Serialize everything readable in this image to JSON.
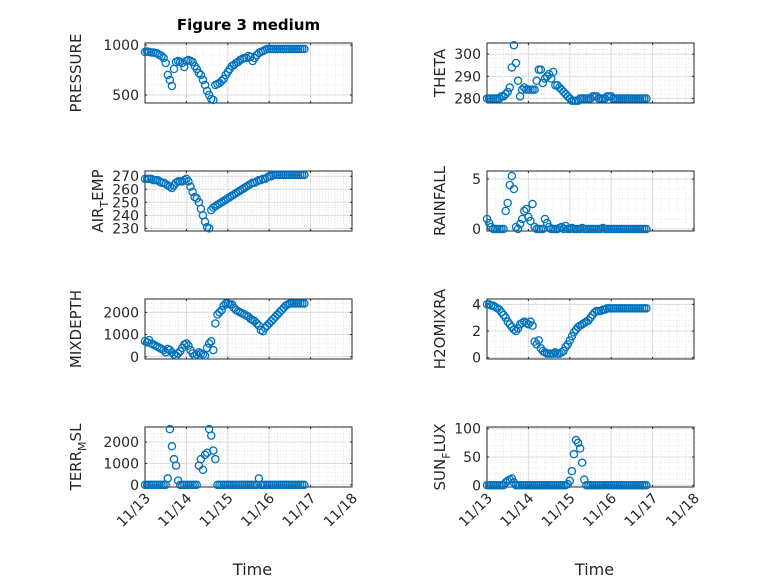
{
  "chart_data": [
    {
      "type": "scatter",
      "title": "Figure 3 medium",
      "ylabel": "PRESSURE",
      "ylabel_main": "PRESSURE",
      "ylabel_sub": "",
      "ylabel_tail": "",
      "xlabel": "",
      "xticks": [],
      "ylim": [
        420,
        1020
      ],
      "yticks": [
        "1000",
        "500"
      ],
      "ytick_values": [
        1000,
        500
      ],
      "x": [
        0,
        0.05,
        0.1,
        0.15,
        0.2,
        0.25,
        0.3,
        0.35,
        0.4,
        0.45,
        0.5,
        0.55,
        0.6,
        0.65,
        0.7,
        0.75,
        0.8,
        0.85,
        0.9,
        0.95,
        1.0,
        1.05,
        1.1,
        1.15,
        1.2,
        1.25,
        1.3,
        1.35,
        1.4,
        1.45,
        1.5,
        1.55,
        1.6,
        1.65,
        1.7,
        1.75,
        1.8,
        1.85,
        1.9,
        1.95,
        2.0,
        2.05,
        2.1,
        2.15,
        2.2,
        2.25,
        2.3,
        2.35,
        2.4,
        2.45,
        2.5,
        2.55,
        2.6,
        2.65,
        2.7,
        2.75,
        2.8,
        2.85,
        2.9,
        2.95,
        3.0,
        3.05,
        3.1,
        3.15,
        3.2,
        3.25,
        3.3,
        3.35,
        3.4,
        3.45,
        3.5,
        3.55,
        3.6,
        3.65,
        3.7,
        3.75,
        3.8,
        3.85
      ],
      "y": [
        930,
        935,
        930,
        925,
        925,
        920,
        915,
        900,
        890,
        870,
        820,
        700,
        650,
        590,
        760,
        830,
        840,
        830,
        820,
        780,
        840,
        850,
        840,
        830,
        790,
        760,
        720,
        700,
        650,
        600,
        540,
        500,
        460,
        450,
        600,
        610,
        620,
        640,
        660,
        700,
        730,
        760,
        790,
        800,
        820,
        830,
        850,
        860,
        870,
        870,
        890,
        880,
        840,
        870,
        900,
        920,
        930,
        940,
        950,
        960,
        960,
        960,
        960,
        960,
        960,
        960,
        960,
        960,
        960,
        960,
        960,
        960,
        960,
        960,
        960,
        960,
        960,
        960
      ],
      "markers": 78
    },
    {
      "type": "scatter",
      "ylabel": "THETA",
      "ylabel_main": "THETA",
      "ylabel_sub": "",
      "ylabel_tail": "",
      "xlabel": "",
      "xticks": [],
      "ylim": [
        278,
        305
      ],
      "yticks": [
        "300",
        "290",
        "280"
      ],
      "ytick_values": [
        300,
        290,
        280
      ],
      "x": [
        0,
        0.05,
        0.1,
        0.15,
        0.2,
        0.25,
        0.3,
        0.35,
        0.4,
        0.45,
        0.5,
        0.55,
        0.6,
        0.65,
        0.7,
        0.75,
        0.8,
        0.85,
        0.9,
        0.95,
        1.0,
        1.05,
        1.1,
        1.15,
        1.2,
        1.25,
        1.3,
        1.35,
        1.4,
        1.45,
        1.5,
        1.55,
        1.6,
        1.65,
        1.7,
        1.75,
        1.8,
        1.85,
        1.9,
        1.95,
        2.0,
        2.05,
        2.1,
        2.15,
        2.2,
        2.25,
        2.3,
        2.35,
        2.4,
        2.45,
        2.5,
        2.55,
        2.6,
        2.65,
        2.7,
        2.75,
        2.8,
        2.85,
        2.9,
        2.95,
        3.0,
        3.05,
        3.1,
        3.15,
        3.2,
        3.25,
        3.3,
        3.35,
        3.4,
        3.45,
        3.5,
        3.55,
        3.6,
        3.65,
        3.7,
        3.75,
        3.8,
        3.85
      ],
      "y": [
        280,
        280,
        280,
        280,
        280,
        280,
        280,
        281,
        281,
        282,
        283,
        285,
        294,
        304,
        296,
        288,
        281,
        284,
        285,
        284,
        284,
        284,
        284,
        284,
        288,
        293,
        293,
        287,
        289,
        290,
        291,
        289,
        292,
        286,
        286,
        285,
        284,
        283,
        282,
        281,
        280,
        279,
        279,
        279,
        279,
        280,
        280,
        280,
        280,
        280,
        280,
        281,
        281,
        281,
        280,
        280,
        280,
        280,
        281,
        281,
        281,
        280,
        280,
        280,
        280,
        280,
        280,
        280,
        280,
        280,
        280,
        280,
        280,
        280,
        280,
        280,
        280,
        280
      ],
      "markers": 78
    },
    {
      "type": "scatter",
      "ylabel": "AIR_TEMP",
      "ylabel_main": "AIR",
      "ylabel_sub": "T",
      "ylabel_tail": "EMP",
      "xlabel": "",
      "xticks": [],
      "ylim": [
        228,
        274
      ],
      "yticks": [
        "270",
        "260",
        "250",
        "240",
        "230"
      ],
      "ytick_values": [
        270,
        260,
        250,
        240,
        230
      ],
      "x": [
        0,
        0.05,
        0.1,
        0.15,
        0.2,
        0.25,
        0.3,
        0.35,
        0.4,
        0.45,
        0.5,
        0.55,
        0.6,
        0.65,
        0.7,
        0.75,
        0.8,
        0.85,
        0.9,
        0.95,
        1.0,
        1.05,
        1.1,
        1.15,
        1.2,
        1.25,
        1.3,
        1.35,
        1.4,
        1.45,
        1.5,
        1.55,
        1.6,
        1.65,
        1.7,
        1.75,
        1.8,
        1.85,
        1.9,
        1.95,
        2.0,
        2.05,
        2.1,
        2.15,
        2.2,
        2.25,
        2.3,
        2.35,
        2.4,
        2.45,
        2.5,
        2.55,
        2.6,
        2.65,
        2.7,
        2.75,
        2.8,
        2.85,
        2.9,
        2.95,
        3.0,
        3.05,
        3.1,
        3.15,
        3.2,
        3.25,
        3.3,
        3.35,
        3.4,
        3.45,
        3.5,
        3.55,
        3.6,
        3.65,
        3.7,
        3.75,
        3.8,
        3.85
      ],
      "y": [
        268,
        268,
        268,
        268,
        267,
        267,
        267,
        266,
        265,
        265,
        264,
        263,
        262,
        261,
        263,
        265,
        266,
        266,
        266,
        267,
        268,
        266,
        262,
        258,
        254,
        253,
        250,
        245,
        240,
        235,
        231,
        230,
        244,
        246,
        247,
        248,
        249,
        250,
        251,
        252,
        253,
        254,
        255,
        256,
        257,
        258,
        259,
        260,
        261,
        262,
        263,
        264,
        265,
        265,
        266,
        267,
        267,
        268,
        268,
        269,
        270,
        270,
        271,
        271,
        271,
        271,
        271,
        271,
        271,
        271,
        271,
        271,
        271,
        271,
        271,
        271,
        271,
        271
      ],
      "markers": 78
    },
    {
      "type": "scatter",
      "ylabel": "RAINFALL",
      "ylabel_main": "RAINFALL",
      "ylabel_sub": "",
      "ylabel_tail": "",
      "xlabel": "",
      "xticks": [],
      "ylim": [
        -0.2,
        5.8
      ],
      "yticks": [
        "5",
        "0"
      ],
      "ytick_values": [
        5,
        0
      ],
      "x": [
        0,
        0.05,
        0.1,
        0.15,
        0.2,
        0.25,
        0.3,
        0.35,
        0.4,
        0.45,
        0.5,
        0.55,
        0.6,
        0.65,
        0.7,
        0.75,
        0.8,
        0.85,
        0.9,
        0.95,
        1.0,
        1.05,
        1.1,
        1.15,
        1.2,
        1.25,
        1.3,
        1.35,
        1.4,
        1.45,
        1.5,
        1.55,
        1.6,
        1.65,
        1.7,
        1.75,
        1.8,
        1.85,
        1.9,
        1.95,
        2.0,
        2.05,
        2.1,
        2.15,
        2.2,
        2.25,
        2.3,
        2.35,
        2.4,
        2.45,
        2.5,
        2.55,
        2.6,
        2.65,
        2.7,
        2.75,
        2.8,
        2.85,
        2.9,
        2.95,
        3.0,
        3.05,
        3.1,
        3.15,
        3.2,
        3.25,
        3.3,
        3.35,
        3.4,
        3.45,
        3.5,
        3.55,
        3.6,
        3.65,
        3.7,
        3.75,
        3.8,
        3.85
      ],
      "y": [
        1.0,
        0.6,
        0.2,
        0,
        0,
        0,
        0,
        0,
        0,
        1.8,
        2.6,
        4.4,
        5.3,
        4.0,
        0.2,
        0,
        0.5,
        1.0,
        1.8,
        2.0,
        1.2,
        0.8,
        2.5,
        0.2,
        0,
        0,
        0,
        0,
        1.0,
        0.6,
        0.2,
        0,
        0,
        0,
        0,
        0.1,
        0.2,
        0,
        0.3,
        0,
        0,
        0.1,
        0,
        0,
        0,
        0,
        0.1,
        0,
        0,
        0,
        0,
        0,
        0,
        0,
        0,
        0,
        0.1,
        0,
        0,
        0,
        0,
        0,
        0,
        0,
        0,
        0,
        0,
        0,
        0,
        0,
        0,
        0,
        0,
        0,
        0,
        0,
        0,
        0
      ],
      "markers": 78
    },
    {
      "type": "scatter",
      "ylabel": "MIXDEPTH",
      "ylabel_main": "MIXDEPTH",
      "ylabel_sub": "",
      "ylabel_tail": "",
      "xlabel": "",
      "xticks": [],
      "ylim": [
        -100,
        2600
      ],
      "yticks": [
        "2000",
        "1000",
        "0"
      ],
      "ytick_values": [
        2000,
        1000,
        0
      ],
      "x": [
        0,
        0.05,
        0.1,
        0.15,
        0.2,
        0.25,
        0.3,
        0.35,
        0.4,
        0.45,
        0.5,
        0.55,
        0.6,
        0.65,
        0.7,
        0.75,
        0.8,
        0.85,
        0.9,
        0.95,
        1.0,
        1.05,
        1.1,
        1.15,
        1.2,
        1.25,
        1.3,
        1.35,
        1.4,
        1.45,
        1.5,
        1.55,
        1.6,
        1.65,
        1.7,
        1.75,
        1.8,
        1.85,
        1.9,
        1.95,
        2.0,
        2.05,
        2.1,
        2.15,
        2.2,
        2.25,
        2.3,
        2.35,
        2.4,
        2.45,
        2.5,
        2.55,
        2.6,
        2.65,
        2.7,
        2.75,
        2.8,
        2.85,
        2.9,
        2.95,
        3.0,
        3.05,
        3.1,
        3.15,
        3.2,
        3.25,
        3.3,
        3.35,
        3.4,
        3.45,
        3.5,
        3.55,
        3.6,
        3.65,
        3.7,
        3.75,
        3.8,
        3.85
      ],
      "y": [
        700,
        650,
        750,
        600,
        550,
        500,
        450,
        400,
        350,
        300,
        200,
        350,
        300,
        200,
        100,
        50,
        150,
        250,
        400,
        550,
        600,
        500,
        300,
        150,
        50,
        100,
        200,
        150,
        100,
        50,
        400,
        600,
        700,
        300,
        1500,
        1900,
        2000,
        2100,
        2300,
        2400,
        2400,
        2350,
        2350,
        2200,
        2100,
        2050,
        2000,
        1950,
        1900,
        1850,
        1800,
        1700,
        1650,
        1600,
        1500,
        1400,
        1200,
        1150,
        1300,
        1400,
        1500,
        1600,
        1700,
        1800,
        1900,
        2000,
        2100,
        2200,
        2300,
        2350,
        2400,
        2400,
        2400,
        2400,
        2400,
        2400,
        2400,
        2400
      ],
      "markers": 78
    },
    {
      "type": "scatter",
      "ylabel": "H2OMIXRA",
      "ylabel_main": "H2OMIXRA",
      "ylabel_sub": "",
      "ylabel_tail": "",
      "xlabel": "",
      "xticks": [],
      "ylim": [
        -0.1,
        4.4
      ],
      "yticks": [
        "4",
        "2",
        "0"
      ],
      "ytick_values": [
        4,
        2,
        0
      ],
      "x": [
        0,
        0.05,
        0.1,
        0.15,
        0.2,
        0.25,
        0.3,
        0.35,
        0.4,
        0.45,
        0.5,
        0.55,
        0.6,
        0.65,
        0.7,
        0.75,
        0.8,
        0.85,
        0.9,
        0.95,
        1.0,
        1.05,
        1.1,
        1.15,
        1.2,
        1.25,
        1.3,
        1.35,
        1.4,
        1.45,
        1.5,
        1.55,
        1.6,
        1.65,
        1.7,
        1.75,
        1.8,
        1.85,
        1.9,
        1.95,
        2.0,
        2.05,
        2.1,
        2.15,
        2.2,
        2.25,
        2.3,
        2.35,
        2.4,
        2.45,
        2.5,
        2.55,
        2.6,
        2.65,
        2.7,
        2.75,
        2.8,
        2.85,
        2.9,
        2.95,
        3.0,
        3.05,
        3.1,
        3.15,
        3.2,
        3.25,
        3.3,
        3.35,
        3.4,
        3.45,
        3.5,
        3.55,
        3.6,
        3.65,
        3.7,
        3.75,
        3.8,
        3.85
      ],
      "y": [
        4.0,
        4.0,
        3.9,
        3.9,
        3.8,
        3.7,
        3.6,
        3.4,
        3.2,
        3.0,
        2.7,
        2.5,
        2.3,
        2.1,
        2.0,
        2.2,
        2.5,
        2.6,
        2.7,
        2.6,
        2.5,
        2.7,
        2.4,
        1.2,
        1.0,
        1.3,
        0.7,
        0.5,
        0.4,
        0.3,
        0.3,
        0.3,
        0.3,
        0.4,
        0.3,
        0.3,
        0.4,
        0.5,
        0.8,
        1.0,
        1.3,
        1.6,
        1.9,
        2.1,
        2.3,
        2.4,
        2.5,
        2.6,
        2.7,
        2.8,
        3.0,
        3.2,
        3.4,
        3.5,
        3.5,
        3.5,
        3.6,
        3.6,
        3.7,
        3.7,
        3.7,
        3.7,
        3.7,
        3.7,
        3.7,
        3.7,
        3.7,
        3.7,
        3.7,
        3.7,
        3.7,
        3.7,
        3.7,
        3.7,
        3.7,
        3.7,
        3.7,
        3.7
      ],
      "markers": 78
    },
    {
      "type": "scatter",
      "ylabel": "TERR_MSL",
      "ylabel_main": "TERR",
      "ylabel_sub": "M",
      "ylabel_tail": "SL",
      "xlabel": "Time",
      "xticks": [
        "11/13",
        "11/14",
        "11/15",
        "11/16",
        "11/17",
        "11/18"
      ],
      "ylim": [
        -100,
        2700
      ],
      "yticks": [
        "2000",
        "1000",
        "0"
      ],
      "ytick_values": [
        2000,
        1000,
        0
      ],
      "x": [
        0,
        0.05,
        0.1,
        0.15,
        0.2,
        0.25,
        0.3,
        0.35,
        0.4,
        0.45,
        0.5,
        0.55,
        0.6,
        0.65,
        0.7,
        0.75,
        0.8,
        0.85,
        0.9,
        0.95,
        1.0,
        1.05,
        1.1,
        1.15,
        1.2,
        1.25,
        1.3,
        1.35,
        1.4,
        1.45,
        1.5,
        1.55,
        1.6,
        1.65,
        1.7,
        1.75,
        1.8,
        1.85,
        1.9,
        1.95,
        2.0,
        2.05,
        2.1,
        2.15,
        2.2,
        2.25,
        2.3,
        2.35,
        2.4,
        2.45,
        2.5,
        2.55,
        2.6,
        2.65,
        2.7,
        2.75,
        2.8,
        2.85,
        2.9,
        2.95,
        3.0,
        3.05,
        3.1,
        3.15,
        3.2,
        3.25,
        3.3,
        3.35,
        3.4,
        3.45,
        3.5,
        3.55,
        3.6,
        3.65,
        3.7,
        3.75,
        3.8,
        3.85
      ],
      "y": [
        0,
        0,
        0,
        0,
        0,
        0,
        0,
        0,
        0,
        0,
        0,
        300,
        2600,
        1800,
        1200,
        900,
        200,
        0,
        0,
        0,
        0,
        0,
        0,
        0,
        0,
        0,
        900,
        1200,
        700,
        1400,
        1500,
        2600,
        2300,
        1600,
        1200,
        0,
        0,
        0,
        0,
        0,
        0,
        0,
        0,
        0,
        0,
        0,
        0,
        0,
        0,
        0,
        0,
        0,
        0,
        0,
        0,
        300,
        0,
        0,
        0,
        0,
        0,
        0,
        0,
        0,
        0,
        0,
        0,
        0,
        0,
        0,
        0,
        0,
        0,
        0,
        0,
        0,
        0,
        0
      ],
      "markers": 78
    },
    {
      "type": "scatter",
      "ylabel": "SUN_FLUX",
      "ylabel_main": "SUN",
      "ylabel_sub": "F",
      "ylabel_tail": "LUX",
      "xlabel": "Time",
      "xticks": [
        "11/13",
        "11/14",
        "11/15",
        "11/16",
        "11/17",
        "11/18"
      ],
      "ylim": [
        -3,
        103
      ],
      "yticks": [
        "100",
        "50",
        "0"
      ],
      "ytick_values": [
        100,
        50,
        0
      ],
      "x": [
        0,
        0.05,
        0.1,
        0.15,
        0.2,
        0.25,
        0.3,
        0.35,
        0.4,
        0.45,
        0.5,
        0.55,
        0.6,
        0.65,
        0.7,
        0.75,
        0.8,
        0.85,
        0.9,
        0.95,
        1.0,
        1.05,
        1.1,
        1.15,
        1.2,
        1.25,
        1.3,
        1.35,
        1.4,
        1.45,
        1.5,
        1.55,
        1.6,
        1.65,
        1.7,
        1.75,
        1.8,
        1.85,
        1.9,
        1.95,
        2.0,
        2.05,
        2.1,
        2.15,
        2.2,
        2.25,
        2.3,
        2.35,
        2.4,
        2.45,
        2.5,
        2.55,
        2.6,
        2.65,
        2.7,
        2.75,
        2.8,
        2.85,
        2.9,
        2.95,
        3.0,
        3.05,
        3.1,
        3.15,
        3.2,
        3.25,
        3.3,
        3.35,
        3.4,
        3.45,
        3.5,
        3.55,
        3.6,
        3.65,
        3.7,
        3.75,
        3.8,
        3.85
      ],
      "y": [
        0,
        0,
        0,
        0,
        0,
        0,
        0,
        0,
        0,
        5,
        8,
        10,
        12,
        5,
        0,
        0,
        0,
        0,
        0,
        0,
        0,
        0,
        0,
        0,
        0,
        0,
        0,
        0,
        0,
        0,
        0,
        0,
        0,
        0,
        0,
        0,
        0,
        0,
        0,
        2,
        8,
        25,
        55,
        80,
        75,
        65,
        40,
        10,
        0,
        0,
        0,
        0,
        0,
        0,
        0,
        0,
        0,
        0,
        0,
        0,
        0,
        0,
        0,
        0,
        0,
        0,
        0,
        0,
        0,
        0,
        0,
        0,
        0,
        0,
        0,
        0,
        0,
        0
      ],
      "markers": 78
    }
  ]
}
